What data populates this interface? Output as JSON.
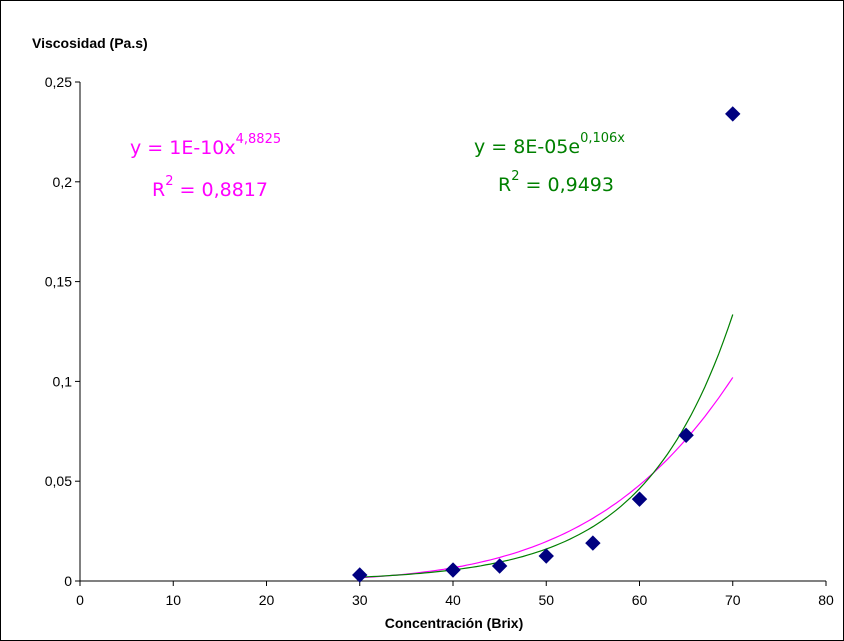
{
  "chart_data": {
    "type": "scatter",
    "title": "",
    "xlabel": "Concentración (Brix)",
    "ylabel": "Viscosidad (Pa.s)",
    "xlim": [
      0,
      80
    ],
    "ylim": [
      0,
      0.25
    ],
    "x_ticks": [
      "0",
      "10",
      "20",
      "30",
      "40",
      "50",
      "60",
      "70",
      "80"
    ],
    "y_ticks": [
      "0",
      "0,05",
      "0,1",
      "0,15",
      "0,2",
      "0,25"
    ],
    "grid": false,
    "series": [
      {
        "marker": "diamond",
        "color": "#000080",
        "x": [
          30,
          40,
          45,
          50,
          55,
          60,
          65,
          70
        ],
        "y": [
          0.003,
          0.0055,
          0.0075,
          0.0125,
          0.019,
          0.041,
          0.073,
          0.234
        ]
      }
    ],
    "trendlines": [
      {
        "type": "power",
        "color": "#ff00ff",
        "a": 1e-10,
        "b": 4.8825,
        "x_range": [
          30,
          70
        ],
        "equation_base": "y = 1E-10x",
        "equation_exp": "4,8825",
        "r2_prefix": "R",
        "r2_exp": "2",
        "r2_value": " = 0,8817"
      },
      {
        "type": "exponential",
        "color": "#008000",
        "a": 8e-05,
        "b": 0.106,
        "x_range": [
          30,
          70
        ],
        "equation_base": "y = 8E-05e",
        "equation_exp": "0,106x",
        "r2_prefix": "R",
        "r2_exp": "2",
        "r2_value": " = 0,9493"
      }
    ]
  }
}
